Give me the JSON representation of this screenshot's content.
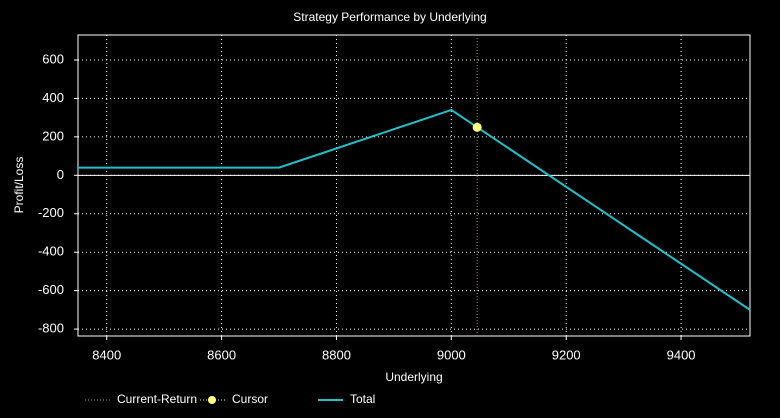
{
  "chart_data": {
    "type": "line",
    "title": "Strategy Performance by Underlying",
    "x_label": "Underlying",
    "y_label": "Profit/Loss",
    "xlim": [
      8350,
      9520
    ],
    "xticks": [
      8400,
      8600,
      8800,
      9000,
      9200,
      9400
    ],
    "ylim": [
      -836,
      730
    ],
    "yticks": [
      -800,
      -600,
      -400,
      -200,
      0,
      200,
      400,
      600
    ],
    "grid": true,
    "zero_line": true,
    "series": [
      {
        "name": "Current-Return",
        "color": "#c08a50",
        "style": "vline",
        "x": [
          9045
        ]
      },
      {
        "name": "Cursor",
        "color": "#ffff80",
        "style": "marker",
        "x": [
          9045
        ],
        "values": [
          250
        ]
      },
      {
        "name": "Total",
        "color": "#20c0c8",
        "style": "line",
        "x": [
          8350,
          8700,
          9000,
          9520
        ],
        "values": [
          40,
          40,
          340,
          -700
        ]
      }
    ]
  }
}
